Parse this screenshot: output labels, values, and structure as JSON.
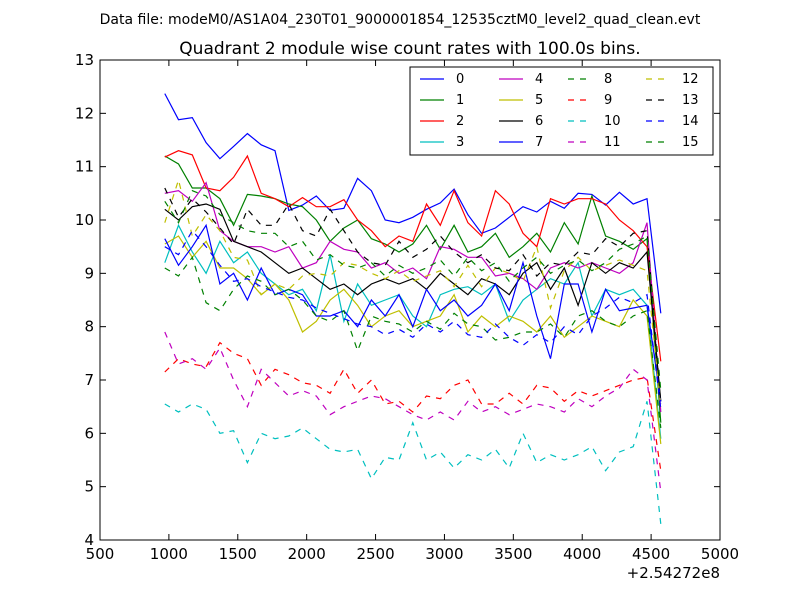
{
  "header": {
    "suptitle": "Data file: modeM0/AS1A04_230T01_9000001854_12535cztM0_level2_quad_clean.evt",
    "title": "Quadrant 2 module wise count rates with 100.0s bins."
  },
  "chart_data": {
    "type": "line",
    "x_offset_label": "+2.54272e8",
    "xlim": [
      500,
      5000
    ],
    "ylim": [
      4,
      13
    ],
    "x_ticks": [
      500,
      1000,
      1500,
      2000,
      2500,
      3000,
      3500,
      4000,
      4500,
      5000
    ],
    "y_ticks": [
      4,
      5,
      6,
      7,
      8,
      9,
      10,
      11,
      12,
      13
    ],
    "x": [
      970,
      1070,
      1170,
      1270,
      1370,
      1470,
      1570,
      1670,
      1770,
      1870,
      1970,
      2070,
      2170,
      2270,
      2370,
      2470,
      2570,
      2670,
      2770,
      2870,
      2970,
      3070,
      3170,
      3270,
      3370,
      3470,
      3570,
      3670,
      3770,
      3870,
      3970,
      4070,
      4170,
      4270,
      4370,
      4470,
      4570
    ],
    "legend_position": "upper right",
    "legend_columns": 4,
    "grid": false,
    "series": [
      {
        "name": "0",
        "color": "#0000ff",
        "dash": "solid",
        "values": [
          12.37,
          11.88,
          11.92,
          11.45,
          11.15,
          11.38,
          11.62,
          11.41,
          11.3,
          10.18,
          10.28,
          10.45,
          10.18,
          10.22,
          10.78,
          10.55,
          10.0,
          9.95,
          10.05,
          10.2,
          10.32,
          10.58,
          10.1,
          9.75,
          9.85,
          10.05,
          10.25,
          10.15,
          10.35,
          10.22,
          10.5,
          10.48,
          10.28,
          10.52,
          10.3,
          10.4,
          8.25
        ]
      },
      {
        "name": "1",
        "color": "#008000",
        "dash": "solid",
        "values": [
          11.2,
          11.05,
          10.6,
          10.6,
          10.4,
          9.9,
          10.48,
          10.45,
          10.4,
          10.3,
          10.25,
          10.0,
          9.6,
          9.85,
          10.0,
          9.65,
          9.55,
          9.4,
          9.55,
          9.9,
          9.45,
          9.9,
          9.4,
          9.5,
          9.75,
          9.3,
          9.5,
          9.75,
          9.4,
          9.95,
          9.55,
          10.45,
          9.7,
          9.6,
          9.45,
          9.65,
          6.2
        ]
      },
      {
        "name": "2",
        "color": "#ff0000",
        "dash": "solid",
        "values": [
          11.18,
          11.3,
          11.22,
          10.6,
          10.55,
          10.8,
          11.2,
          10.5,
          10.4,
          10.25,
          10.42,
          10.25,
          10.25,
          10.38,
          10.0,
          9.8,
          9.5,
          9.7,
          9.6,
          10.3,
          9.9,
          10.55,
          9.95,
          9.7,
          10.55,
          10.3,
          9.75,
          9.5,
          10.4,
          10.3,
          10.4,
          10.4,
          10.3,
          10.0,
          9.8,
          9.5,
          7.35
        ]
      },
      {
        "name": "3",
        "color": "#00bfbf",
        "dash": "solid",
        "values": [
          9.2,
          9.9,
          9.4,
          9.0,
          9.6,
          9.2,
          9.4,
          9.0,
          8.8,
          8.6,
          8.7,
          8.3,
          9.35,
          8.1,
          8.8,
          8.4,
          8.5,
          8.6,
          8.2,
          8.0,
          8.6,
          8.7,
          8.75,
          8.6,
          8.8,
          8.1,
          8.5,
          8.7,
          8.9,
          8.8,
          9.2,
          8.2,
          8.7,
          8.6,
          8.7,
          8.4,
          5.9
        ]
      },
      {
        "name": "4",
        "color": "#bf00bf",
        "dash": "solid",
        "values": [
          10.5,
          10.55,
          10.35,
          10.7,
          9.8,
          9.6,
          9.5,
          9.5,
          9.4,
          9.5,
          9.1,
          9.2,
          9.6,
          9.45,
          9.4,
          9.1,
          9.2,
          9.0,
          9.1,
          8.9,
          9.5,
          9.45,
          9.3,
          9.3,
          8.95,
          9.0,
          8.9,
          8.7,
          9.1,
          9.2,
          9.1,
          9.2,
          9.1,
          9.0,
          9.2,
          9.95,
          6.4
        ]
      },
      {
        "name": "5",
        "color": "#bfbf00",
        "dash": "solid",
        "values": [
          9.55,
          9.7,
          9.3,
          9.6,
          9.1,
          9.1,
          8.9,
          8.6,
          8.8,
          8.5,
          7.9,
          8.1,
          8.5,
          8.7,
          8.4,
          8.0,
          8.2,
          8.3,
          8.0,
          8.1,
          8.2,
          8.6,
          7.9,
          8.2,
          8.0,
          8.2,
          8.1,
          7.9,
          8.2,
          7.8,
          8.0,
          8.2,
          8.1,
          8.0,
          8.5,
          8.2,
          5.8
        ]
      },
      {
        "name": "6",
        "color": "#000000",
        "dash": "solid",
        "values": [
          10.2,
          10.0,
          10.25,
          10.3,
          10.2,
          9.6,
          9.5,
          9.4,
          9.2,
          9.0,
          9.1,
          8.9,
          8.7,
          8.8,
          8.6,
          8.8,
          8.9,
          8.8,
          8.9,
          8.7,
          9.0,
          8.8,
          8.6,
          8.9,
          8.8,
          8.6,
          9.0,
          9.2,
          8.7,
          9.1,
          8.4,
          9.2,
          9.0,
          9.2,
          9.1,
          9.4,
          6.6
        ]
      },
      {
        "name": "7",
        "color": "#0000ff",
        "dash": "solid",
        "values": [
          9.65,
          9.15,
          9.5,
          9.9,
          8.8,
          9.0,
          8.5,
          9.1,
          8.6,
          8.7,
          8.6,
          8.2,
          8.2,
          8.3,
          8.0,
          8.5,
          8.2,
          8.6,
          8.0,
          8.7,
          8.3,
          8.5,
          8.2,
          8.4,
          8.8,
          8.3,
          9.2,
          8.2,
          7.4,
          8.8,
          8.8,
          7.9,
          8.7,
          8.3,
          8.35,
          8.4,
          6.6
        ]
      },
      {
        "name": "8",
        "color": "#008000",
        "dash": "dashed",
        "values": [
          9.1,
          8.95,
          9.3,
          8.45,
          8.3,
          8.7,
          8.95,
          8.85,
          8.6,
          8.7,
          8.5,
          8.2,
          8.1,
          8.3,
          7.55,
          8.2,
          8.1,
          8.05,
          7.9,
          8.1,
          7.95,
          8.25,
          8.05,
          8.0,
          7.75,
          7.8,
          7.9,
          7.9,
          8.05,
          7.8,
          8.2,
          8.3,
          8.1,
          8.0,
          8.2,
          8.3,
          6.1
        ]
      },
      {
        "name": "9",
        "color": "#ff0000",
        "dash": "dashed",
        "values": [
          7.15,
          7.4,
          7.3,
          7.25,
          7.7,
          7.5,
          7.4,
          6.9,
          7.2,
          7.1,
          6.95,
          6.9,
          6.75,
          7.2,
          6.75,
          7.0,
          6.55,
          6.6,
          6.4,
          6.7,
          6.65,
          6.9,
          7.0,
          6.55,
          6.55,
          6.75,
          6.55,
          6.9,
          6.85,
          6.6,
          6.8,
          6.7,
          6.8,
          6.9,
          7.0,
          7.05,
          5.3
        ]
      },
      {
        "name": "10",
        "color": "#00bfbf",
        "dash": "dashed",
        "values": [
          6.55,
          6.4,
          6.55,
          6.45,
          6.0,
          6.05,
          5.45,
          6.0,
          5.9,
          5.95,
          6.1,
          5.9,
          5.7,
          5.65,
          5.7,
          5.15,
          5.55,
          5.5,
          6.2,
          5.5,
          5.65,
          5.35,
          5.6,
          5.5,
          5.7,
          5.35,
          6.0,
          5.45,
          5.6,
          5.5,
          5.6,
          5.75,
          5.3,
          5.65,
          5.75,
          6.6,
          4.3
        ]
      },
      {
        "name": "11",
        "color": "#bf00bf",
        "dash": "dashed",
        "values": [
          7.9,
          7.3,
          7.4,
          7.2,
          7.6,
          7.0,
          6.5,
          7.2,
          6.95,
          6.7,
          6.8,
          6.7,
          6.35,
          6.5,
          6.6,
          6.7,
          6.65,
          6.5,
          6.35,
          6.25,
          6.4,
          6.25,
          6.6,
          6.4,
          6.5,
          6.35,
          6.45,
          6.55,
          6.5,
          6.4,
          6.65,
          6.5,
          6.7,
          6.85,
          7.2,
          7.0,
          4.9
        ]
      },
      {
        "name": "12",
        "color": "#bfbf00",
        "dash": "dashed",
        "values": [
          9.95,
          10.75,
          9.7,
          10.1,
          9.8,
          9.3,
          9.25,
          8.6,
          8.8,
          8.7,
          8.95,
          9.0,
          8.95,
          9.2,
          9.15,
          9.0,
          8.9,
          9.05,
          8.85,
          8.95,
          9.05,
          8.75,
          9.15,
          8.75,
          9.1,
          9.0,
          8.85,
          9.5,
          8.35,
          9.05,
          9.3,
          9.05,
          9.15,
          9.25,
          9.15,
          9.05,
          6.5
        ]
      },
      {
        "name": "13",
        "color": "#000000",
        "dash": "dashed",
        "values": [
          10.6,
          10.05,
          10.4,
          10.15,
          9.85,
          9.55,
          10.2,
          9.9,
          9.9,
          10.3,
          9.8,
          9.7,
          10.2,
          9.8,
          9.4,
          9.2,
          9.15,
          9.6,
          9.3,
          9.45,
          9.7,
          9.4,
          9.2,
          9.35,
          9.1,
          9.05,
          9.35,
          8.95,
          9.2,
          9.15,
          9.4,
          9.35,
          9.65,
          9.5,
          9.75,
          9.8,
          6.55
        ]
      },
      {
        "name": "14",
        "color": "#0000ff",
        "dash": "dashed",
        "values": [
          9.5,
          9.35,
          9.8,
          9.5,
          9.15,
          8.85,
          8.9,
          8.75,
          8.65,
          8.55,
          8.5,
          8.35,
          8.25,
          8.15,
          8.05,
          8.0,
          7.85,
          7.95,
          7.8,
          8.05,
          7.9,
          8.1,
          7.85,
          7.8,
          8.05,
          7.8,
          7.65,
          7.85,
          7.7,
          8.0,
          7.85,
          8.2,
          8.35,
          8.55,
          8.45,
          8.6,
          6.45
        ]
      },
      {
        "name": "15",
        "color": "#008000",
        "dash": "dashed",
        "values": [
          10.35,
          9.95,
          10.55,
          10.45,
          10.1,
          9.95,
          9.8,
          9.75,
          9.75,
          9.5,
          9.6,
          9.25,
          9.35,
          9.15,
          9.1,
          9.2,
          8.95,
          9.15,
          9.0,
          9.1,
          9.25,
          8.95,
          9.3,
          9.05,
          9.2,
          8.85,
          9.1,
          9.3,
          9.0,
          9.15,
          9.25,
          9.05,
          9.2,
          9.45,
          9.55,
          9.7,
          6.8
        ]
      }
    ]
  }
}
